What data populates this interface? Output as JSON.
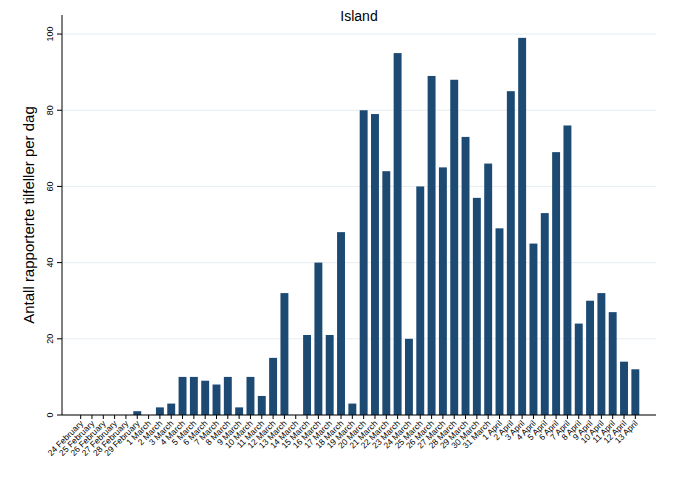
{
  "chart_data": {
    "type": "bar",
    "title": "Island",
    "y_label": "Antall rapporterte tilfeller per dag",
    "categories": [
      "24 February",
      "25 February",
      "26 February",
      "27 February",
      "28 February",
      "29 February",
      "1 March",
      "2 March",
      "3 March",
      "4 March",
      "5 March",
      "6 March",
      "7 March",
      "8 March",
      "9 March",
      "10 March",
      "11 March",
      "12 March",
      "13 March",
      "14 March",
      "15 March",
      "16 March",
      "17 March",
      "18 March",
      "19 March",
      "20 March",
      "21 March",
      "22 March",
      "23 March",
      "24 March",
      "25 March",
      "26 March",
      "27 March",
      "28 March",
      "29 March",
      "30 March",
      "31 March",
      "1 April",
      "2 April",
      "3 April",
      "4 April",
      "5 April",
      "6 April",
      "7 April",
      "8 April",
      "9 April",
      "10 April",
      "11 April",
      "12 April",
      "13 April"
    ],
    "values": [
      0,
      0,
      0,
      0,
      0,
      1,
      0,
      2,
      3,
      10,
      10,
      9,
      8,
      10,
      2,
      10,
      5,
      15,
      32,
      0,
      21,
      40,
      21,
      48,
      3,
      80,
      79,
      64,
      95,
      20,
      60,
      89,
      65,
      88,
      73,
      57,
      66,
      49,
      85,
      99,
      45,
      53,
      69,
      76,
      24,
      30,
      32,
      27,
      14,
      12
    ],
    "color": "#1c4a73",
    "ylim": [
      0,
      105
    ],
    "yticks": [
      0,
      20,
      40,
      60,
      80,
      100
    ],
    "grid": true
  }
}
